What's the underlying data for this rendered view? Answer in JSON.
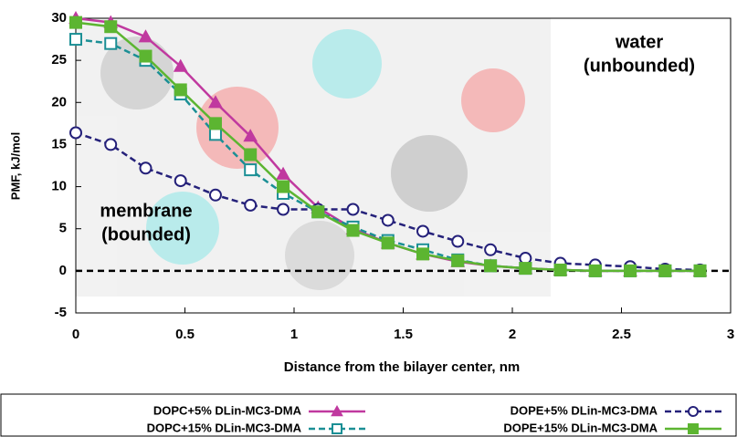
{
  "chart_data": {
    "type": "line",
    "xlabel": "Distance from the bilayer center, nm",
    "ylabel": "PMF, kJ/mol",
    "x": [
      0,
      0.16,
      0.32,
      0.48,
      0.64,
      0.8,
      0.95,
      1.11,
      1.27,
      1.43,
      1.59,
      1.75,
      1.9,
      2.06,
      2.22,
      2.38,
      2.54,
      2.7,
      2.86
    ],
    "series": [
      {
        "name": "DOPC+5% DLin-MC3-DMA",
        "color": "#c0399f",
        "marker": "triangle",
        "dashed": false,
        "values": [
          30,
          29.5,
          27.8,
          24.3,
          20,
          16,
          11.5,
          7.5,
          5,
          3.3,
          2,
          1.1,
          0.6,
          0.3,
          0.1,
          0,
          0,
          0,
          0
        ]
      },
      {
        "name": "DOPC+15% DLin-MC3-DMA",
        "color": "#1b8f95",
        "marker": "square-open",
        "dashed": true,
        "values": [
          27.5,
          27,
          25,
          21,
          16.2,
          12,
          9.2,
          7,
          5.2,
          3.6,
          2.5,
          1.3,
          0.6,
          0.3,
          0.1,
          0,
          0,
          0,
          0
        ]
      },
      {
        "name": "DOPE+5% DLin-MC3-DMA",
        "color": "#25217a",
        "marker": "circle-open",
        "dashed": true,
        "values": [
          16.4,
          15,
          12.2,
          10.7,
          9,
          7.8,
          7.3,
          7.3,
          7.3,
          6,
          4.7,
          3.5,
          2.5,
          1.5,
          0.9,
          0.7,
          0.5,
          0.2,
          0.1
        ]
      },
      {
        "name": "DOPE+15% DLin-MC3-DMA",
        "color": "#5cb531",
        "marker": "square",
        "dashed": false,
        "values": [
          29.5,
          29,
          25.5,
          21.5,
          17.5,
          13.8,
          10,
          7,
          4.8,
          3.3,
          2,
          1.2,
          0.6,
          0.3,
          0.1,
          0,
          0,
          0,
          0
        ]
      }
    ],
    "xlim": [
      0,
      3
    ],
    "xticks": [
      0,
      0.5,
      1,
      1.5,
      2,
      2.5,
      3
    ],
    "ylim": [
      -5,
      30
    ],
    "yticks": [
      -5,
      0,
      5,
      10,
      15,
      20,
      25,
      30
    ],
    "reference_line": 0,
    "annotations": [
      {
        "lines": [
          "water",
          "(unbounded)"
        ],
        "color": "#2f4da0"
      },
      {
        "lines": [
          "membrane",
          "(bounded)"
        ],
        "color": "#3c9a2e"
      }
    ],
    "grid": false,
    "legend": "bottom"
  }
}
